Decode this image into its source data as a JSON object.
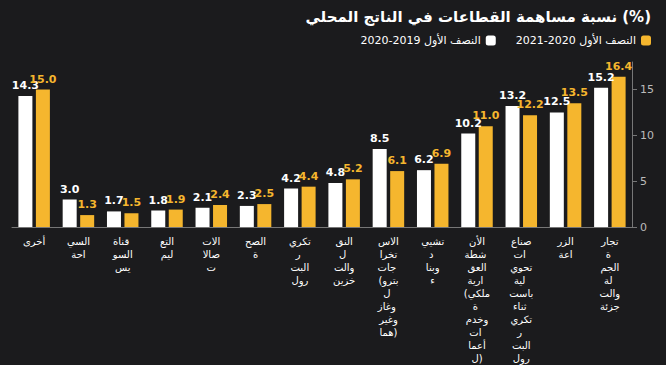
{
  "chart_data": {
    "type": "bar",
    "title": "نسبة مساهمة القطاعات في الناتج المحلي (%)",
    "categories": [
      "أخرى",
      "السياحة",
      "قناة السويس",
      "التعليم",
      "الاتصالات",
      "الصحة",
      "تكرير البترول",
      "النقل والتخزين",
      "الاستخراجات (بترول وغاز وغيرهما)",
      "تشييد وبناء",
      "الأنشطة العقارية (ملكية وخدمات أعمال)",
      "صناعات تحويلية باستثناء تكرير البترول",
      "الزراعة",
      "تجارة الجملة والتجزئة"
    ],
    "series": [
      {
        "name": "النصف الأول 2019-2020",
        "color": "#ffffff",
        "values": [
          14.3,
          3.0,
          1.7,
          1.8,
          2.1,
          2.3,
          4.2,
          4.8,
          8.5,
          6.2,
          10.2,
          13.2,
          12.5,
          15.2
        ],
        "value_labels": [
          "14.3",
          "3.0",
          "1.7",
          "1.8",
          "2.1",
          "2.3",
          "4.2",
          "4.8",
          "8.5",
          "6.2",
          "10.2",
          "13.2",
          "12.5",
          "15.2"
        ]
      },
      {
        "name": "النصف الأول 2020-2021",
        "color": "#f5b62e",
        "values": [
          15.0,
          1.3,
          1.5,
          1.9,
          2.4,
          2.5,
          4.4,
          5.2,
          6.1,
          6.9,
          11.0,
          12.2,
          13.5,
          16.4
        ],
        "value_labels": [
          "15.0",
          "1.3",
          "1.5",
          "1.9",
          "2.4",
          "2.5",
          "4.4",
          "5.2",
          "6.1",
          "6.9",
          "11.0",
          "12.2",
          "13.5",
          "16.4"
        ]
      }
    ],
    "ylim": [
      0,
      18
    ],
    "yticks": [
      0,
      5,
      10,
      15
    ],
    "grid": false,
    "legend": "top-right",
    "data_labels": true
  }
}
